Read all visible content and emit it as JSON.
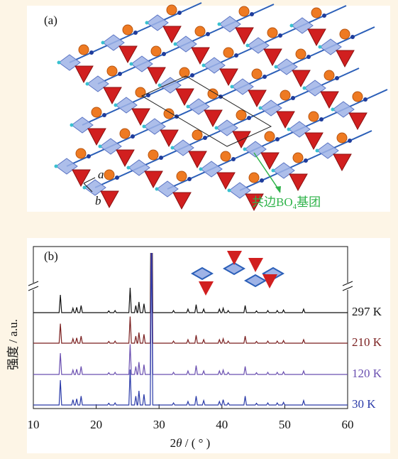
{
  "chart_data": {
    "type": "line",
    "panel_labels": [
      "(a)",
      "(b)"
    ],
    "axis_letters": [
      "a",
      "b"
    ],
    "annotation": [
      "共边BO",
      "4",
      "基团"
    ],
    "y_label": "强度 / a.u.",
    "x_label": [
      "2",
      "θ",
      " / ( ° )"
    ],
    "x": [
      10,
      14.1,
      14.3,
      14.5,
      16.1,
      16.3,
      16.5,
      16.7,
      16.9,
      17.1,
      17.4,
      17.6,
      17.8,
      21.8,
      22,
      22.2,
      22.8,
      23,
      23.2,
      25.2,
      25.4,
      25.6,
      26.1,
      26.3,
      26.5,
      26.6,
      26.8,
      27.0,
      27.4,
      27.6,
      27.8,
      28.6,
      28.8,
      29.0,
      32.1,
      32.3,
      32.5,
      34.4,
      34.6,
      34.8,
      35.7,
      35.9,
      36.1,
      36.9,
      37.1,
      37.3,
      39.4,
      39.6,
      39.8,
      40.0,
      40.2,
      40.4,
      40.8,
      41.0,
      41.2,
      43.5,
      43.7,
      43.9,
      45.3,
      45.5,
      45.7,
      47.1,
      47.3,
      47.5,
      48.6,
      48.8,
      49.0,
      49.6,
      49.8,
      50.0,
      52.8,
      53.0,
      53.2,
      60
    ],
    "xlim": [
      10,
      60
    ],
    "xticks": [
      10,
      20,
      30,
      40,
      50,
      60
    ],
    "ylim": [
      0,
      100
    ],
    "series": [
      {
        "name": "297 K",
        "color": "#111111",
        "values": [
          0,
          0,
          10,
          0,
          0,
          2.5,
          0,
          0,
          3,
          0,
          0,
          4,
          0,
          0,
          1,
          0,
          0,
          1.2,
          0,
          0,
          14,
          0,
          0,
          4,
          0,
          0,
          6,
          0,
          0,
          5,
          0,
          0,
          100,
          0,
          0,
          1.2,
          0,
          0,
          2,
          0,
          0,
          4.5,
          0,
          0,
          2,
          0,
          0,
          2,
          0,
          0,
          2.5,
          0,
          0,
          1.2,
          0,
          0,
          4,
          0,
          0,
          1,
          0,
          0,
          1.2,
          0,
          0,
          1.2,
          0,
          0,
          1.5,
          0,
          0,
          2,
          0,
          0
        ]
      },
      {
        "name": "210 K",
        "color": "#7a1f1f",
        "values": [
          0,
          0,
          11,
          0,
          0,
          2.5,
          0,
          0,
          3,
          0,
          0,
          4,
          0,
          0,
          1,
          0,
          0,
          1.2,
          0,
          0,
          15,
          0,
          0,
          4,
          0,
          0,
          6,
          0,
          0,
          5,
          0,
          0,
          100,
          0,
          0,
          1.2,
          0,
          0,
          2,
          0,
          0,
          4.5,
          0,
          0,
          2,
          0,
          0,
          2,
          0,
          0,
          2.5,
          0,
          0,
          1.2,
          0,
          0,
          4,
          0,
          0,
          1,
          0,
          0,
          1.2,
          0,
          0,
          1.2,
          0,
          0,
          1.5,
          0,
          0,
          2,
          0,
          0
        ]
      },
      {
        "name": "120 K",
        "color": "#6a4fb0",
        "values": [
          0,
          0,
          12,
          0,
          0,
          2.5,
          0,
          0,
          3,
          0,
          0,
          4.5,
          0,
          0,
          1,
          0,
          0,
          1.2,
          0,
          0,
          17,
          0,
          0,
          4.5,
          0,
          0,
          7,
          0,
          0,
          5.5,
          0,
          0,
          100,
          0,
          0,
          1.2,
          0,
          0,
          2,
          0,
          0,
          5,
          0,
          0,
          2,
          0,
          0,
          2,
          0,
          0,
          2.5,
          0,
          0,
          1.2,
          0,
          0,
          4.5,
          0,
          0,
          1,
          0,
          0,
          1.2,
          0,
          0,
          1.2,
          0,
          0,
          1.5,
          0,
          0,
          2,
          0,
          0
        ]
      },
      {
        "name": "30 K",
        "color": "#2a3aa8",
        "values": [
          0,
          0,
          14,
          0,
          0,
          3,
          0,
          0,
          3.5,
          0,
          0,
          5,
          0,
          0,
          1,
          0,
          0,
          1.2,
          0,
          0,
          20,
          0,
          0,
          5,
          0,
          0,
          8,
          0,
          0,
          6,
          0,
          0,
          100,
          0,
          0,
          1.2,
          0,
          0,
          2,
          0,
          0,
          5,
          0,
          0,
          2.5,
          0,
          0,
          2,
          0,
          0,
          3,
          0,
          0,
          1.2,
          0,
          0,
          5,
          0,
          0,
          1,
          0,
          0,
          1.2,
          0,
          0,
          1.2,
          0,
          0,
          1.5,
          0,
          0,
          2.5,
          0,
          0
        ]
      }
    ]
  }
}
